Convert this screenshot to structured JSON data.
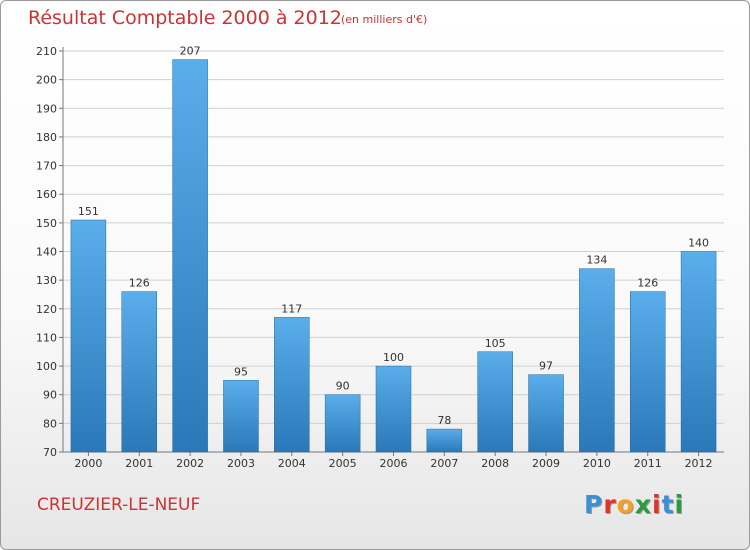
{
  "header": {
    "title": "Résultat Comptable 2000 à 2012",
    "unit": "(en milliers d'€)"
  },
  "footer": {
    "commune": "CREUZIER-LE-NEUF",
    "logo_letters": [
      "P",
      "r",
      "o",
      "x",
      "i",
      "t",
      "i"
    ],
    "logo_colors": [
      "#3a8fd6",
      "#e0342a",
      "#f0a21f",
      "#2e9a3e",
      "#e0342a",
      "#3a8fd6",
      "#2e9a3e"
    ]
  },
  "chart_data": {
    "type": "bar",
    "title": "Résultat Comptable 2000 à 2012",
    "categories": [
      "2000",
      "2001",
      "2002",
      "2003",
      "2004",
      "2005",
      "2006",
      "2007",
      "2008",
      "2009",
      "2010",
      "2011",
      "2012"
    ],
    "values": [
      151,
      126,
      207,
      95,
      117,
      90,
      100,
      78,
      105,
      97,
      134,
      126,
      140
    ],
    "ylim": [
      70,
      210
    ],
    "yticks": [
      70,
      80,
      90,
      100,
      110,
      120,
      130,
      140,
      150,
      160,
      170,
      180,
      190,
      200,
      210
    ],
    "grid": true,
    "bar_color_top": "#5aaeea",
    "bar_color_bottom": "#2a78b8"
  }
}
